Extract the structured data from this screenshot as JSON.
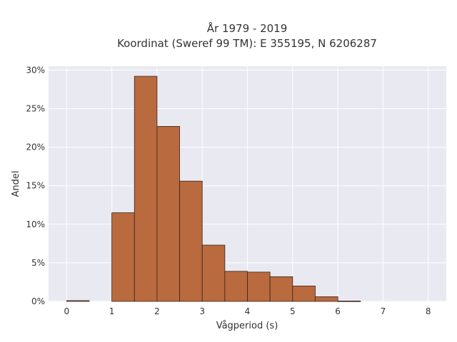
{
  "chart_data": {
    "type": "bar",
    "title_line1": "År 1979 - 2019",
    "title_line2": "Koordinat (Sweref 99 TM): E 355195, N 6206287",
    "xlabel": "Vågperiod (s)",
    "ylabel": "Andel",
    "xlim": [
      -0.4,
      8.4
    ],
    "ylim": [
      0,
      0.305
    ],
    "x_ticks": [
      0,
      1,
      2,
      3,
      4,
      5,
      6,
      7,
      8
    ],
    "x_tick_labels": [
      "0",
      "1",
      "2",
      "3",
      "4",
      "5",
      "6",
      "7",
      "8"
    ],
    "y_ticks": [
      0,
      0.05,
      0.1,
      0.15,
      0.2,
      0.25,
      0.3
    ],
    "y_tick_labels": [
      "0%",
      "5%",
      "10%",
      "15%",
      "20%",
      "25%",
      "30%"
    ],
    "bin_width": 0.5,
    "bars": [
      {
        "x_start": 0.0,
        "value": 0.001
      },
      {
        "x_start": 1.0,
        "value": 0.115
      },
      {
        "x_start": 1.5,
        "value": 0.292
      },
      {
        "x_start": 2.0,
        "value": 0.227
      },
      {
        "x_start": 2.5,
        "value": 0.156
      },
      {
        "x_start": 3.0,
        "value": 0.073
      },
      {
        "x_start": 3.5,
        "value": 0.039
      },
      {
        "x_start": 4.0,
        "value": 0.038
      },
      {
        "x_start": 4.5,
        "value": 0.032
      },
      {
        "x_start": 5.0,
        "value": 0.02
      },
      {
        "x_start": 5.5,
        "value": 0.006
      },
      {
        "x_start": 6.0,
        "value": 0.0005
      }
    ],
    "grid": true,
    "colors": {
      "bar_fill": "#b96a3f",
      "bar_edge": "#3a2418",
      "plot_bg": "#e9e9f1",
      "grid": "#ffffff"
    }
  }
}
